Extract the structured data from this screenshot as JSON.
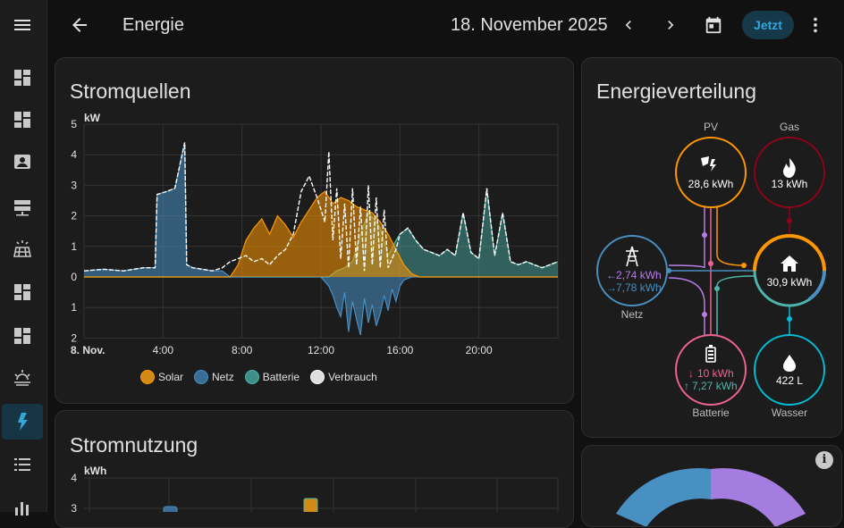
{
  "header": {
    "title": "Energie",
    "date": "18. November 2025",
    "now_label": "Jetzt"
  },
  "sidebar": {
    "items": [
      {
        "icon": "menu-icon"
      },
      {
        "icon": "dashboard-icon"
      },
      {
        "icon": "dashboard-icon"
      },
      {
        "icon": "account-box-icon"
      },
      {
        "icon": "server-icon"
      },
      {
        "icon": "solar-panel-icon"
      },
      {
        "icon": "dashboard-icon"
      },
      {
        "icon": "dashboard-icon"
      },
      {
        "icon": "weather-sunset-icon"
      },
      {
        "icon": "lightning-bolt-icon",
        "active": true
      },
      {
        "icon": "format-list-icon"
      },
      {
        "icon": "chart-bar-icon"
      }
    ]
  },
  "stromquellen": {
    "title": "Stromquellen",
    "chart_data": {
      "type": "area",
      "ylabel": "kW",
      "y_ticks_up": [
        "5",
        "4",
        "3",
        "2",
        "1",
        "0"
      ],
      "y_ticks_down": [
        "1",
        "2"
      ],
      "x_first_label": "8. Nov.",
      "x_ticks": [
        "4:00",
        "8:00",
        "12:00",
        "16:00",
        "20:00"
      ],
      "ylim": [
        -2,
        5
      ],
      "xlim": [
        0,
        24
      ],
      "colors": {
        "Solar": "#ff9800",
        "Netz": "#488fc2",
        "Batterie": "#4db6ac",
        "Verbrauch": "#ffffff"
      },
      "series": [
        {
          "name": "Solar",
          "x": [
            0,
            7.4,
            7.8,
            8.2,
            8.6,
            9,
            9.4,
            9.8,
            10.2,
            10.6,
            11,
            11.4,
            11.8,
            12.2,
            12.6,
            13,
            13.4,
            13.8,
            14.2,
            14.6,
            15,
            15.4,
            15.8,
            16.2,
            16.6,
            17,
            24
          ],
          "values": [
            0,
            0,
            0.4,
            1.2,
            1.6,
            1.9,
            1.4,
            2.0,
            1.7,
            1.3,
            1.8,
            2.2,
            2.6,
            2.8,
            2.4,
            2.6,
            2.5,
            2.3,
            2.2,
            2.1,
            1.8,
            1.4,
            0.9,
            0.4,
            0.1,
            0,
            0
          ]
        },
        {
          "name": "Netz",
          "x": [
            0,
            1,
            2,
            3,
            3.6,
            3.7,
            4.2,
            4.6,
            4.9,
            5.1,
            5.2,
            5.5,
            6,
            6.5,
            7,
            7.4,
            12,
            12.4,
            12.6,
            12.8,
            13,
            13.2,
            13.4,
            13.6,
            13.8,
            14,
            14.2,
            14.4,
            14.6,
            14.8,
            15,
            15.2,
            15.4,
            15.6,
            15.8,
            16,
            16.2,
            16.4,
            16.6,
            24
          ],
          "values": [
            0.2,
            0.25,
            0.2,
            0.3,
            0.3,
            2.7,
            2.8,
            2.9,
            3.8,
            4.4,
            0.4,
            0.3,
            0.25,
            0.2,
            0.2,
            0,
            0,
            -0.3,
            -0.6,
            -1.0,
            -1.3,
            -0.5,
            -1.8,
            -0.8,
            -1.4,
            -1.9,
            -0.7,
            -1.5,
            -0.9,
            -1.6,
            -1.2,
            -0.6,
            -1.1,
            -0.4,
            -0.8,
            -0.3,
            -0.1,
            -0.05,
            0,
            0
          ]
        },
        {
          "name": "Batterie",
          "x": [
            0,
            12.4,
            12.8,
            13.2,
            13.6,
            14,
            14.4,
            14.8,
            15,
            15.4,
            15.8,
            16,
            16.4,
            16.8,
            17.2,
            17.6,
            18,
            18.4,
            18.8,
            19.2,
            19.6,
            20,
            20.4,
            20.8,
            21.2,
            21.6,
            22,
            22.4,
            22.8,
            23.2,
            23.6,
            24
          ],
          "values": [
            0,
            0,
            0.2,
            0.3,
            0.5,
            1.4,
            2.1,
            1.8,
            1.6,
            0.7,
            1.2,
            1.4,
            1.6,
            1.2,
            0.9,
            0.8,
            0.7,
            0.9,
            0.7,
            2.1,
            0.8,
            0.6,
            2.9,
            0.7,
            2.1,
            0.5,
            0.4,
            0.5,
            0.4,
            0.3,
            0.4,
            0.5
          ]
        },
        {
          "name": "Verbrauch",
          "x": [
            0,
            1,
            2,
            3,
            3.6,
            3.7,
            4.2,
            4.6,
            4.9,
            5.1,
            5.2,
            5.5,
            6,
            6.5,
            7,
            7.4,
            7.8,
            8.2,
            8.6,
            9,
            9.4,
            9.8,
            10.2,
            10.6,
            11,
            11.4,
            11.8,
            12.2,
            12.4,
            12.6,
            12.8,
            13,
            13.2,
            13.4,
            13.6,
            13.8,
            14,
            14.2,
            14.4,
            14.6,
            14.8,
            15,
            15.2,
            15.4,
            15.8,
            16,
            16.4,
            16.8,
            17.2,
            17.6,
            18,
            18.4,
            18.8,
            19.2,
            19.6,
            20,
            20.4,
            20.8,
            21.2,
            21.6,
            22,
            22.4,
            22.8,
            23.2,
            23.6,
            24
          ],
          "values": [
            0.2,
            0.25,
            0.2,
            0.3,
            0.3,
            2.7,
            2.8,
            2.9,
            3.8,
            4.4,
            0.4,
            0.3,
            0.25,
            0.2,
            0.3,
            0.5,
            0.6,
            0.7,
            0.5,
            0.6,
            0.4,
            0.7,
            0.9,
            1.4,
            2.8,
            3.3,
            2.6,
            1.8,
            4.1,
            1.2,
            2.9,
            0.6,
            2.4,
            0.3,
            2.9,
            0.4,
            2.3,
            0.2,
            3.0,
            0.4,
            2.6,
            0.3,
            2.2,
            0.3,
            0.9,
            1.4,
            1.6,
            1.2,
            0.9,
            0.8,
            0.7,
            0.9,
            0.7,
            2.1,
            0.8,
            0.6,
            2.9,
            0.7,
            2.1,
            0.5,
            0.4,
            0.5,
            0.4,
            0.3,
            0.4,
            0.5
          ]
        }
      ]
    },
    "legend": [
      "Solar",
      "Netz",
      "Batterie",
      "Verbrauch"
    ]
  },
  "stromnutzung": {
    "title": "Stromnutzung",
    "ylabel": "kWh",
    "y_ticks": [
      "4",
      "3"
    ]
  },
  "energieverteilung": {
    "title": "Energieverteilung",
    "pv": {
      "label": "PV",
      "value": "28,6 kWh",
      "color": "#ff9800"
    },
    "gas": {
      "label": "Gas",
      "value": "13 kWh",
      "color": "#8e021b"
    },
    "netz": {
      "label": "Netz",
      "import": "2,74 kWh",
      "export": "7,78 kWh",
      "color": "#488fc2"
    },
    "home": {
      "value": "30,9 kWh"
    },
    "batterie": {
      "label": "Batterie",
      "in": "10 kWh",
      "out": "7,27 kWh",
      "color": "#f06292"
    },
    "wasser": {
      "label": "Wasser",
      "value": "422 L",
      "color": "#00bcd4"
    }
  }
}
